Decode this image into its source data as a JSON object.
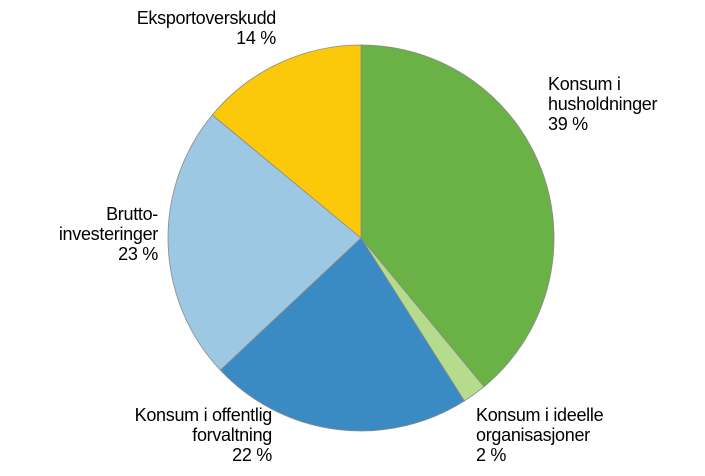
{
  "chart_data": {
    "type": "pie",
    "categories": [
      "Konsum i\nhusholdninger",
      "Konsum i ideelle\norganisasjoner",
      "Konsum i offentlig\nforvaltning",
      "Brutto-\ninvesteringer",
      "Eksportoverskudd"
    ],
    "values": [
      39,
      2,
      22,
      23,
      14
    ],
    "value_labels": [
      "39 %",
      "2 %",
      "22 %",
      "23 %",
      "14 %"
    ],
    "colors": [
      "#6ab245",
      "#b4dc8c",
      "#3a8bc3",
      "#9dc8e4",
      "#fcc80a"
    ]
  }
}
